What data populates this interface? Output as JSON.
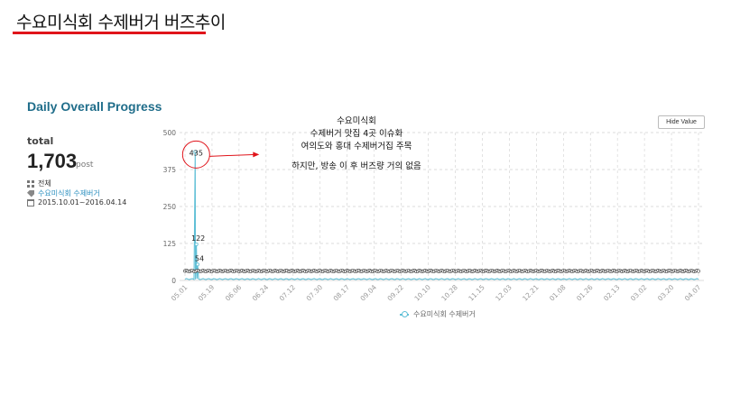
{
  "slide": {
    "title": "수요미식회 수제버거 버즈추이"
  },
  "panel": {
    "title": "Daily Overall Progress",
    "total_label": "total",
    "total_value": "1,703",
    "total_unit": "post",
    "meta": {
      "scope": "전체",
      "keyword": "수요미식회 수제버거",
      "period": "2015.10.01~2016.04.14"
    },
    "hide_button": "Hide Value"
  },
  "annotation": {
    "lines": [
      "수요미식회",
      "수제버거 맛집 4곳 이슈화",
      "여의도와 홍대 수제버거집 주목",
      "",
      "하지만, 방송 이 후 버즈량 거의 없음"
    ]
  },
  "colors": {
    "series": "#5fbfd6",
    "callout": "#e0141b",
    "grid": "#cfcfcf",
    "accent_title": "#1f6d8a"
  },
  "chart_data": {
    "type": "line",
    "ylim": [
      0,
      500
    ],
    "yticks": [
      "0",
      "125",
      "250",
      "375",
      "500"
    ],
    "xticks": [
      "05.01",
      "05.19",
      "06.06",
      "06.24",
      "07.12",
      "07.30",
      "08.17",
      "09.04",
      "09.22",
      "10.10",
      "10.28",
      "11.15",
      "12.03",
      "12.21",
      "01.08",
      "01.26",
      "02.13",
      "03.02",
      "03.20",
      "04.07"
    ],
    "grid": "dashed",
    "legend_position": "bottom-center",
    "series": [
      {
        "name": "수요미식회 수제버거",
        "peaks": [
          {
            "x_index": 6.8,
            "value": 435,
            "label": "435"
          },
          {
            "x_index": 7.6,
            "value": 122,
            "label": "122"
          },
          {
            "x_index": 8.4,
            "value": 54,
            "label": "54"
          }
        ],
        "baseline_value": 3
      }
    ],
    "callout_value": 435
  }
}
